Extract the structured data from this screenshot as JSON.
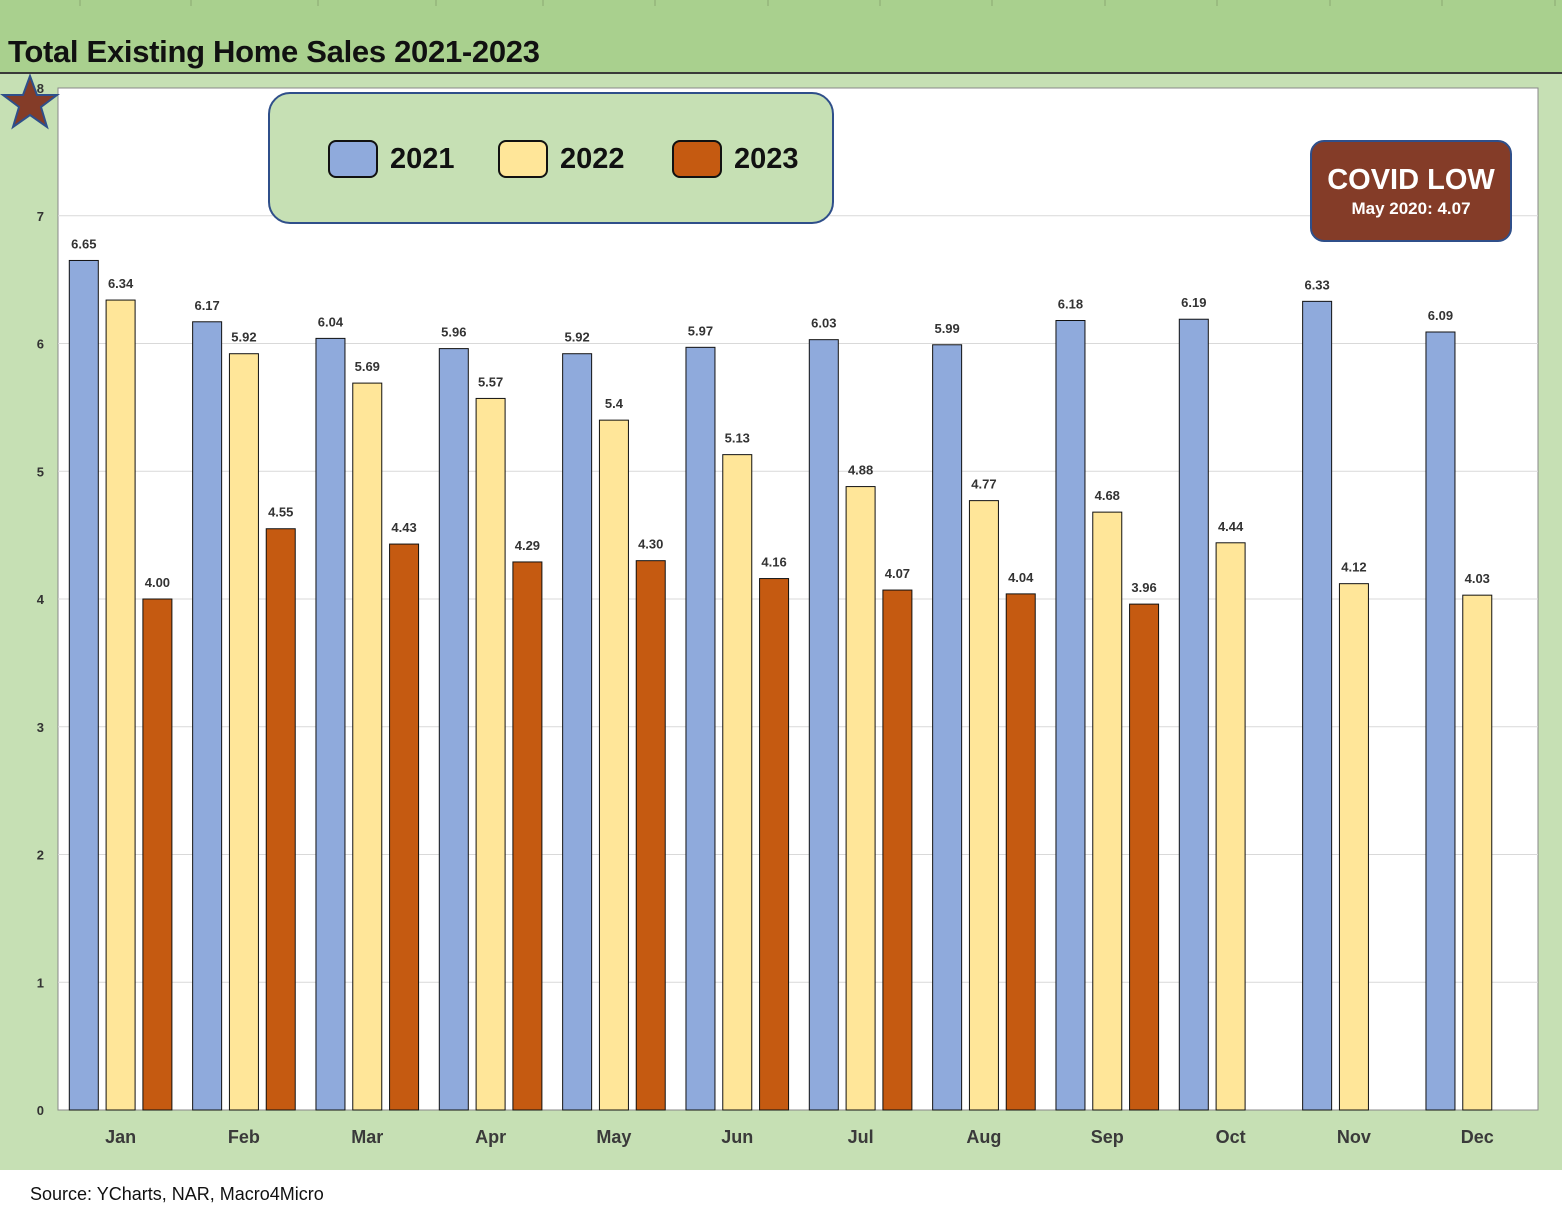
{
  "title": "Total Existing Home Sales 2021-2023",
  "source": "Source: YCharts, NAR, Macro4Micro",
  "annotation": {
    "title": "COVID LOW",
    "subtitle": "May 2020: 4.07",
    "icon": "star-icon",
    "color": "#843c28"
  },
  "colors": {
    "band": "#a9d08e",
    "chart_bg": "#c6e0b4",
    "plot_bg": "#ffffff"
  },
  "chart_data": {
    "type": "bar",
    "title": "Total Existing Home Sales 2021-2023",
    "xlabel": "",
    "ylabel": "",
    "ylim": [
      0,
      8
    ],
    "yticks": [
      0,
      1,
      2,
      3,
      4,
      5,
      6,
      7,
      8
    ],
    "grid": true,
    "legend_position": "top-left",
    "categories": [
      "Jan",
      "Feb",
      "Mar",
      "Apr",
      "May",
      "Jun",
      "Jul",
      "Aug",
      "Sep",
      "Oct",
      "Nov",
      "Dec"
    ],
    "series": [
      {
        "name": "2021",
        "color": "#8faadc",
        "values": [
          6.65,
          6.17,
          6.04,
          5.96,
          5.92,
          5.97,
          6.03,
          5.99,
          6.18,
          6.19,
          6.33,
          6.09
        ],
        "labels": [
          "6.65",
          "6.17",
          "6.04",
          "5.96",
          "5.92",
          "5.97",
          "6.03",
          "5.99",
          "6.18",
          "6.19",
          "6.33",
          "6.09"
        ]
      },
      {
        "name": "2022",
        "color": "#ffe699",
        "values": [
          6.34,
          5.92,
          5.69,
          5.57,
          5.4,
          5.13,
          4.88,
          4.77,
          4.68,
          4.44,
          4.12,
          4.03
        ],
        "labels": [
          "6.34",
          "5.92",
          "5.69",
          "5.57",
          "5.4",
          "5.13",
          "4.88",
          "4.77",
          "4.68",
          "4.44",
          "4.12",
          "4.03"
        ]
      },
      {
        "name": "2023",
        "color": "#c55a11",
        "values": [
          4.0,
          4.55,
          4.43,
          4.29,
          4.3,
          4.16,
          4.07,
          4.04,
          3.96,
          null,
          null,
          null
        ],
        "labels": [
          "4.00",
          "4.55",
          "4.43",
          "4.29",
          "4.30",
          "4.16",
          "4.07",
          "4.04",
          "3.96",
          null,
          null,
          null
        ]
      }
    ]
  }
}
